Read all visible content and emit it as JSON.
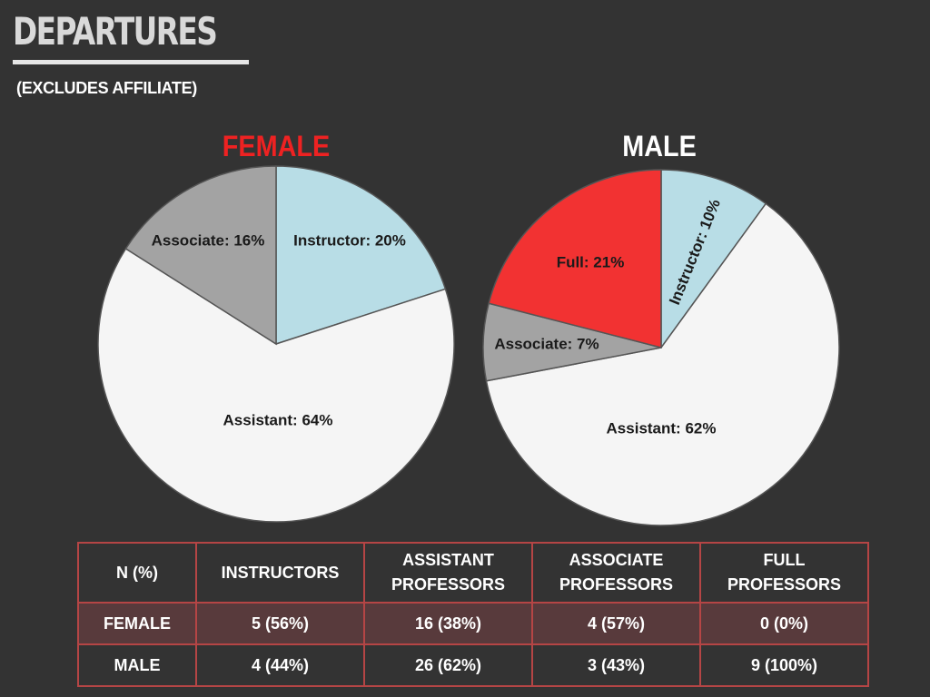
{
  "page": {
    "title": "DEPARTURES",
    "subtitle": "(EXCLUDES AFFILIATE)"
  },
  "colors": {
    "instructor": "#b8dde6",
    "assistant": "#f5f5f5",
    "associate": "#a3a3a3",
    "full": "#f23232",
    "female_title": "#ee2222",
    "male_title": "#ffffff",
    "table_border": "#b54545",
    "female_row": "#583a3c"
  },
  "chart_data": [
    {
      "type": "pie",
      "title": "FEMALE",
      "slices": [
        {
          "key": "instructor",
          "label": "Instructor: 20%",
          "value": 20
        },
        {
          "key": "assistant",
          "label": "Assistant: 64%",
          "value": 64
        },
        {
          "key": "associate",
          "label": "Associate: 16%",
          "value": 16
        }
      ]
    },
    {
      "type": "pie",
      "title": "MALE",
      "slices": [
        {
          "key": "instructor",
          "label": "Instructor: 10%",
          "value": 10
        },
        {
          "key": "assistant",
          "label": "Assistant: 62%",
          "value": 62
        },
        {
          "key": "associate",
          "label": "Associate: 7%",
          "value": 7
        },
        {
          "key": "full",
          "label": "Full: 21%",
          "value": 21
        }
      ]
    },
    {
      "type": "table",
      "columns": [
        "N (%)",
        "INSTRUCTORS",
        "ASSISTANT PROFESSORS",
        "ASSOCIATE PROFESSORS",
        "FULL PROFESSORS"
      ],
      "rows": [
        {
          "label": "FEMALE",
          "cells": [
            "5 (56%)",
            "16 (38%)",
            "4 (57%)",
            "0 (0%)"
          ]
        },
        {
          "label": "MALE",
          "cells": [
            "4 (44%)",
            "26 (62%)",
            "3 (43%)",
            "9 (100%)"
          ]
        }
      ]
    }
  ]
}
